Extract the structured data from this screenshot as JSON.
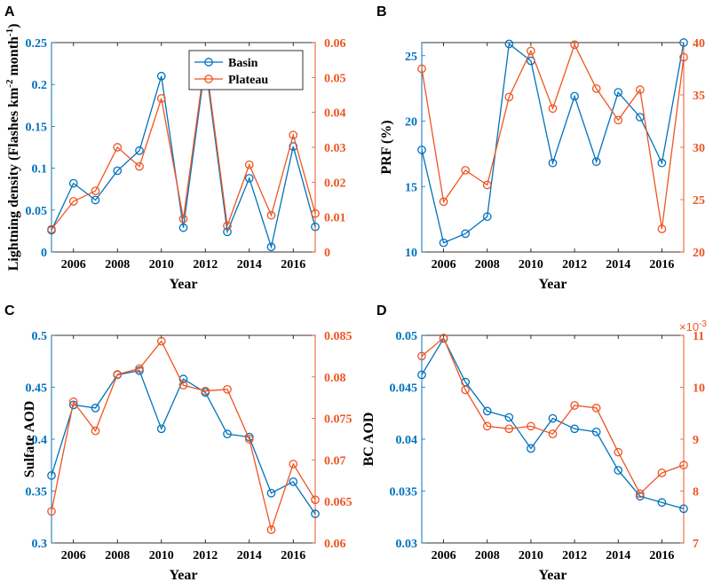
{
  "colors": {
    "basin": "#0072BD",
    "plateau": "#EE5522",
    "axis": "#000000"
  },
  "chart_data": [
    {
      "id": "A",
      "type": "line",
      "panel_label": "A",
      "xlabel": "Year",
      "ylabel": "Lightning density (Flashes km^-2 month^-1)",
      "ylabel_parts": {
        "base": "Lightning density (Flashes km",
        "sup1": "-2",
        "mid": " month",
        "sup2": "-1",
        "end": ")"
      },
      "ylabel_right": "",
      "xlim": [
        2005,
        2017
      ],
      "xticks": [
        2006,
        2008,
        2010,
        2012,
        2014,
        2016
      ],
      "xtick_labels": [
        "2006",
        "2008",
        "2010",
        "2012",
        "2014",
        "2016"
      ],
      "ylim_left": [
        0,
        0.25
      ],
      "yticks_left": [
        0,
        0.05,
        0.1,
        0.15,
        0.2,
        0.25
      ],
      "ytick_labels_left": [
        "0",
        "0.05",
        "0.1",
        "0.15",
        "0.2",
        "0.25"
      ],
      "ylim_right": [
        0,
        0.06
      ],
      "yticks_right": [
        0,
        0.01,
        0.02,
        0.03,
        0.04,
        0.05,
        0.06
      ],
      "ytick_labels_right": [
        "0",
        "0.01",
        "0.02",
        "0.03",
        "0.04",
        "0.05",
        "0.06"
      ],
      "right_exponent": "",
      "legend": {
        "entries": [
          "Basin",
          "Plateau"
        ],
        "placement": "top-right"
      },
      "x": [
        2005,
        2006,
        2007,
        2008,
        2009,
        2010,
        2011,
        2012,
        2013,
        2014,
        2015,
        2016,
        2017
      ],
      "series": [
        {
          "name": "Basin",
          "axis": "left",
          "values": [
            0.026,
            0.082,
            0.062,
            0.097,
            0.121,
            0.21,
            0.029,
            0.225,
            0.024,
            0.088,
            0.006,
            0.126,
            0.03
          ]
        },
        {
          "name": "Plateau",
          "axis": "right",
          "values": [
            0.0065,
            0.0145,
            0.0175,
            0.03,
            0.0245,
            0.044,
            0.0095,
            0.0555,
            0.0075,
            0.025,
            0.0105,
            0.0335,
            0.011
          ]
        }
      ]
    },
    {
      "id": "B",
      "type": "line",
      "panel_label": "B",
      "xlabel": "Year",
      "ylabel": "PRF (%)",
      "ylabel_right": "",
      "xlim": [
        2005,
        2017
      ],
      "xticks": [
        2006,
        2008,
        2010,
        2012,
        2014,
        2016
      ],
      "xtick_labels": [
        "2006",
        "2008",
        "2010",
        "2012",
        "2014",
        "2016"
      ],
      "ylim_left": [
        10,
        26
      ],
      "yticks_left": [
        10,
        15,
        20,
        25
      ],
      "ytick_labels_left": [
        "10",
        "15",
        "20",
        "25"
      ],
      "ylim_right": [
        20,
        40
      ],
      "yticks_right": [
        20,
        25,
        30,
        35,
        40
      ],
      "ytick_labels_right": [
        "20",
        "25",
        "30",
        "35",
        "40"
      ],
      "right_exponent": "",
      "x": [
        2005,
        2006,
        2007,
        2008,
        2009,
        2010,
        2011,
        2012,
        2013,
        2014,
        2015,
        2016,
        2017
      ],
      "series": [
        {
          "name": "Basin",
          "axis": "left",
          "values": [
            17.8,
            10.7,
            11.4,
            12.7,
            25.9,
            24.6,
            16.8,
            21.9,
            16.9,
            22.2,
            20.3,
            16.8,
            26.0
          ]
        },
        {
          "name": "Plateau",
          "axis": "right",
          "values": [
            37.5,
            24.8,
            27.8,
            26.4,
            34.8,
            39.2,
            33.7,
            39.8,
            35.6,
            32.6,
            35.5,
            22.2,
            38.6
          ]
        }
      ]
    },
    {
      "id": "C",
      "type": "line",
      "panel_label": "C",
      "xlabel": "Year",
      "ylabel": "Sulfate AOD",
      "ylabel_right": "",
      "xlim": [
        2005,
        2017
      ],
      "xticks": [
        2006,
        2008,
        2010,
        2012,
        2014,
        2016
      ],
      "xtick_labels": [
        "2006",
        "2008",
        "2010",
        "2012",
        "2014",
        "2016"
      ],
      "ylim_left": [
        0.3,
        0.5
      ],
      "yticks_left": [
        0.3,
        0.35,
        0.4,
        0.45,
        0.5
      ],
      "ytick_labels_left": [
        "0.3",
        "0.35",
        "0.4",
        "0.45",
        "0.5"
      ],
      "ylim_right": [
        0.06,
        0.085
      ],
      "yticks_right": [
        0.06,
        0.065,
        0.07,
        0.075,
        0.08,
        0.085
      ],
      "ytick_labels_right": [
        "0.06",
        "0.065",
        "0.07",
        "0.075",
        "0.08",
        "0.085"
      ],
      "right_exponent": "",
      "x": [
        2005,
        2006,
        2007,
        2008,
        2009,
        2010,
        2011,
        2012,
        2013,
        2014,
        2015,
        2016,
        2017
      ],
      "series": [
        {
          "name": "Basin",
          "axis": "left",
          "values": [
            0.365,
            0.433,
            0.43,
            0.462,
            0.466,
            0.41,
            0.458,
            0.445,
            0.405,
            0.402,
            0.348,
            0.359,
            0.328
          ]
        },
        {
          "name": "Plateau",
          "axis": "right",
          "values": [
            0.0638,
            0.077,
            0.0735,
            0.0803,
            0.081,
            0.0843,
            0.079,
            0.0783,
            0.0785,
            0.0725,
            0.0616,
            0.0695,
            0.0652
          ]
        }
      ]
    },
    {
      "id": "D",
      "type": "line",
      "panel_label": "D",
      "xlabel": "Year",
      "ylabel": "BC AOD",
      "ylabel_right": "",
      "xlim": [
        2005,
        2017
      ],
      "xticks": [
        2006,
        2008,
        2010,
        2012,
        2014,
        2016
      ],
      "xtick_labels": [
        "2006",
        "2008",
        "2010",
        "2012",
        "2014",
        "2016"
      ],
      "ylim_left": [
        0.03,
        0.05
      ],
      "yticks_left": [
        0.03,
        0.035,
        0.04,
        0.045,
        0.05
      ],
      "ytick_labels_left": [
        "0.03",
        "0.035",
        "0.04",
        "0.045",
        "0.05"
      ],
      "ylim_right": [
        7,
        11
      ],
      "yticks_right": [
        7,
        8,
        9,
        10,
        11
      ],
      "ytick_labels_right": [
        "7",
        "8",
        "9",
        "10",
        "11"
      ],
      "right_exponent": "×10^-3",
      "right_exponent_parts": {
        "base": "×10",
        "sup": "-3"
      },
      "x": [
        2005,
        2006,
        2007,
        2008,
        2009,
        2010,
        2011,
        2012,
        2013,
        2014,
        2015,
        2016,
        2017
      ],
      "series": [
        {
          "name": "Basin",
          "axis": "left",
          "values": [
            0.0462,
            0.0497,
            0.0455,
            0.0427,
            0.0421,
            0.0391,
            0.042,
            0.041,
            0.0407,
            0.037,
            0.0345,
            0.0339,
            0.0333
          ]
        },
        {
          "name": "Plateau",
          "axis": "right",
          "values": [
            10.6,
            10.95,
            9.95,
            9.25,
            9.2,
            9.25,
            9.1,
            9.65,
            9.6,
            8.75,
            7.95,
            8.35,
            8.5
          ]
        }
      ]
    }
  ]
}
